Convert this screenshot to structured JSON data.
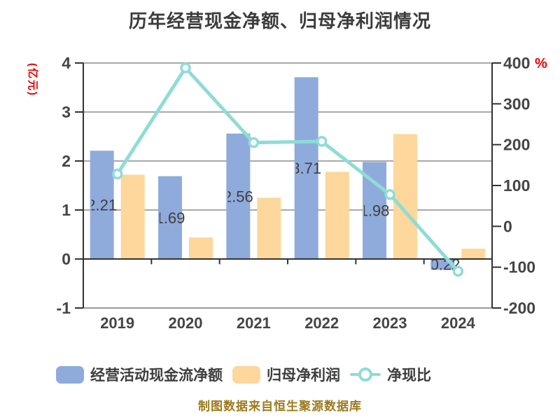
{
  "chart_data": {
    "type": "combo",
    "title": "历年经营现金净额、归母净利润情况",
    "categories": [
      "2019",
      "2020",
      "2021",
      "2022",
      "2023",
      "2024"
    ],
    "series": [
      {
        "name": "经营活动现金流净额",
        "type": "bar",
        "axis": "left",
        "color": "#8fabdc",
        "values": [
          2.21,
          1.69,
          2.56,
          3.71,
          1.98,
          -0.22
        ],
        "labels": [
          "2.21",
          "1.69",
          "2.56",
          "3.71",
          "1.98",
          "-0.22"
        ]
      },
      {
        "name": "归母净利润",
        "type": "bar",
        "axis": "left",
        "color": "#fdd79b",
        "values": [
          1.72,
          0.44,
          1.25,
          1.78,
          2.55,
          0.21
        ]
      },
      {
        "name": "净现比",
        "type": "line",
        "axis": "right",
        "marker": "circle",
        "color": "#8fdcd6",
        "values": [
          128,
          388,
          205,
          208,
          78,
          -110
        ]
      }
    ],
    "left_axis": {
      "unit": "(亿元)",
      "unit_color": "#e60000",
      "min": -1,
      "max": 4,
      "ticks": [
        4,
        3,
        2,
        1,
        0,
        -1
      ]
    },
    "right_axis": {
      "unit": "%",
      "unit_color": "#e60000",
      "min": -200,
      "max": 400,
      "ticks": [
        400,
        300,
        200,
        100,
        0,
        -100,
        -200
      ]
    },
    "legend_position": "bottom",
    "grid": true,
    "footer": "制图数据来自恒生聚源数据库"
  },
  "colors": {
    "title_text": "#3c3c3c",
    "tick_text": "#454545",
    "bar_label_text": "#3e3e3e",
    "grid_line": "#a9a9a9",
    "axis_line": "#333333",
    "footer_text": "#9c7a1d",
    "accent_red": "#e60000"
  }
}
